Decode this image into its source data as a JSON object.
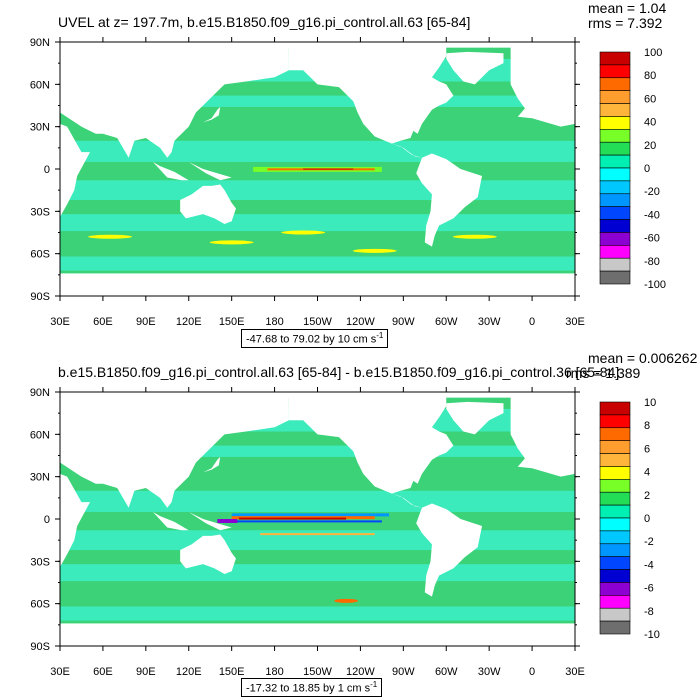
{
  "panels": [
    {
      "title": "UVEL at z= 197.7m, b.e15.B1850.f09_g16.pi_control.all.63 [65-84]",
      "mean_text": "mean = 1.04",
      "rms_text": "rms = 7.392",
      "range_text": "-47.68 to 79.02 by 10 cm s",
      "range_unit_sup": "-1",
      "colorbar_labels": [
        "100",
        "80",
        "60",
        "40",
        "20",
        "0",
        "-20",
        "-40",
        "-60",
        "-80",
        "-100"
      ]
    },
    {
      "title": "b.e15.B1850.f09_g16.pi_control.all.63 [65-84] - b.e15.B1850.f09_g16.pi_control.36 [65-84]",
      "mean_text": "mean = 0.006262",
      "rms_text": "rms = 1.389",
      "range_text": "-17.32 to 18.85 by 1 cm s",
      "range_unit_sup": "-1",
      "colorbar_labels": [
        "10",
        "8",
        "6",
        "4",
        "2",
        "0",
        "-2",
        "-4",
        "-6",
        "-8",
        "-10"
      ]
    }
  ],
  "axes": {
    "lat_labels": [
      "90N",
      "60N",
      "30N",
      "0",
      "30S",
      "60S",
      "90S"
    ],
    "lon_labels": [
      "30E",
      "60E",
      "90E",
      "120E",
      "150E",
      "180",
      "150W",
      "120W",
      "90W",
      "60W",
      "30W",
      "0",
      "30E"
    ]
  },
  "colormap": [
    "#c80000",
    "#ff0000",
    "#ff6a00",
    "#ff9d2e",
    "#ffb43c",
    "#ffff00",
    "#78ff28",
    "#22dd55",
    "#00f0b4",
    "#00ffff",
    "#00c8ff",
    "#0096ff",
    "#0046ff",
    "#0000d2",
    "#8c00d2",
    "#ff00ff",
    "#c8c8c8",
    "#6e6e6e"
  ],
  "map_colors": {
    "ocean": "#3cd278",
    "ocean_light": "#3cf0c8",
    "land": "#ffffff"
  }
}
